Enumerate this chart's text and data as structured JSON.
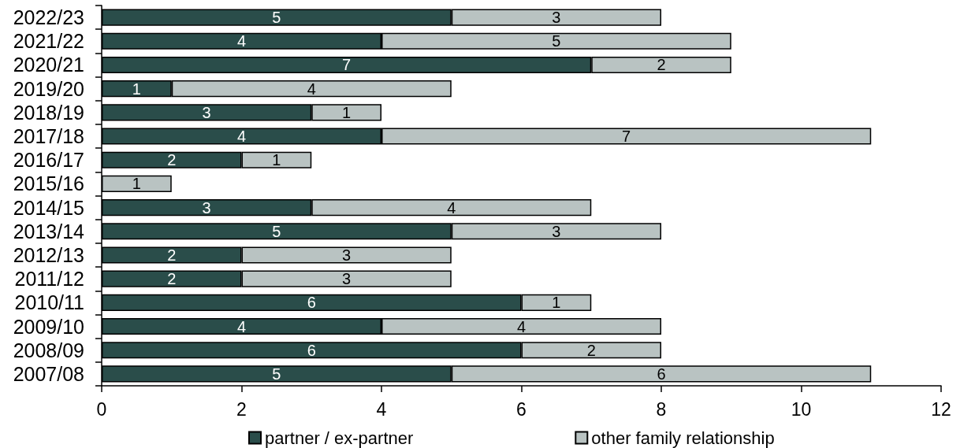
{
  "chart_data": {
    "type": "bar",
    "orientation": "horizontal",
    "stacked": true,
    "categories": [
      "2022/23",
      "2021/22",
      "2020/21",
      "2019/20",
      "2018/19",
      "2017/18",
      "2016/17",
      "2015/16",
      "2014/15",
      "2013/14",
      "2012/13",
      "2011/12",
      "2010/11",
      "2009/10",
      "2008/09",
      "2007/08"
    ],
    "series": [
      {
        "name": "partner / ex-partner",
        "color": "#2a4d4a",
        "values": [
          5,
          4,
          7,
          1,
          3,
          4,
          2,
          null,
          3,
          5,
          2,
          2,
          6,
          4,
          6,
          5
        ]
      },
      {
        "name": "other family relationship",
        "color": "#b9c3c2",
        "values": [
          3,
          5,
          2,
          4,
          1,
          7,
          1,
          1,
          4,
          3,
          3,
          3,
          1,
          4,
          2,
          6
        ]
      }
    ],
    "xlim": [
      0,
      12
    ],
    "xticks": [
      0,
      2,
      4,
      6,
      8,
      10,
      12
    ],
    "grid": false,
    "legend": "bottom",
    "data_labels": true
  }
}
